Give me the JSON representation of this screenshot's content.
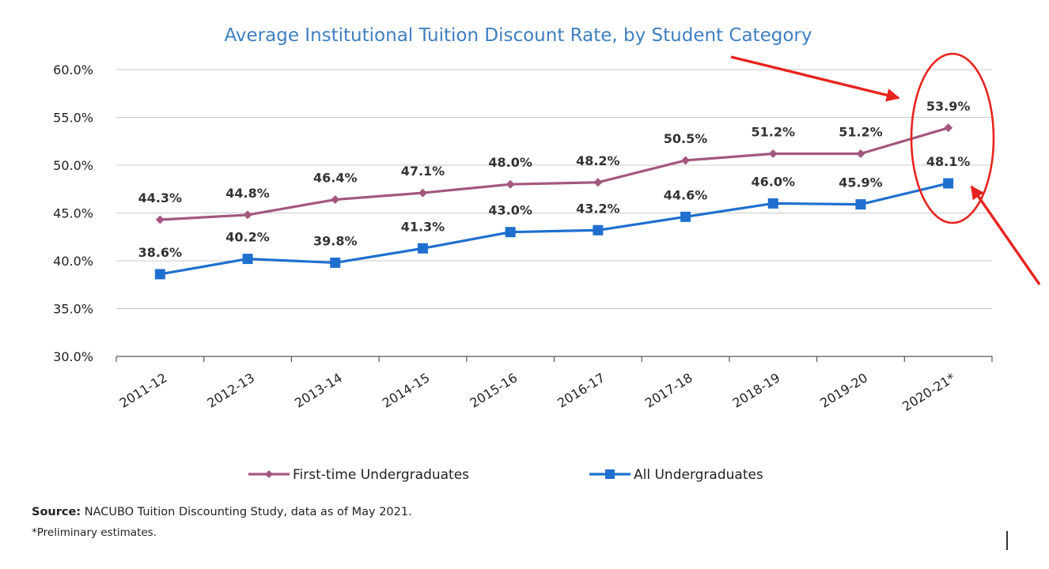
{
  "chart_data": {
    "type": "line",
    "title": "Average Institutional Tuition Discount Rate, by Student Category",
    "categories": [
      "2011-12",
      "2012-13",
      "2013-14",
      "2014-15",
      "2015-16",
      "2016-17",
      "2017-18",
      "2018-19",
      "2019-20",
      "2020-21*"
    ],
    "series": [
      {
        "name": "First-time Undergraduates",
        "values": [
          44.3,
          44.8,
          46.4,
          47.1,
          48.0,
          48.2,
          50.5,
          51.2,
          51.2,
          53.9
        ],
        "labels": [
          "44.3%",
          "44.8%",
          "46.4%",
          "47.1%",
          "48.0%",
          "48.2%",
          "50.5%",
          "51.2%",
          "51.2%",
          "53.9%"
        ],
        "color": "#A3577E",
        "marker": "diamond"
      },
      {
        "name": "All Undergraduates",
        "values": [
          38.6,
          40.2,
          39.8,
          41.3,
          43.0,
          43.2,
          44.6,
          46.0,
          45.9,
          48.1
        ],
        "labels": [
          "38.6%",
          "40.2%",
          "39.8%",
          "41.3%",
          "43.0%",
          "43.2%",
          "44.6%",
          "46.0%",
          "45.9%",
          "48.1%"
        ],
        "color": "#1F6FCF",
        "marker": "square"
      }
    ],
    "ylim": [
      30,
      60
    ],
    "yticks": [
      30,
      35,
      40,
      45,
      50,
      55,
      60
    ],
    "ytick_labels": [
      "30.0%",
      "35.0%",
      "40.0%",
      "45.0%",
      "50.0%",
      "55.0%",
      "60.0%"
    ],
    "xlabel": "",
    "ylabel": "",
    "grid": true,
    "legend_position": "bottom",
    "title_color": "#3E7FC1"
  },
  "footnote": {
    "source_label": "Source:",
    "source_text": " NACUBO Tuition Discounting Study, data as of May 2021.",
    "note": "*Preliminary estimates."
  },
  "annotations": {
    "color": "#E8231E",
    "items": [
      "arrow",
      "ellipse",
      "arrow"
    ]
  }
}
